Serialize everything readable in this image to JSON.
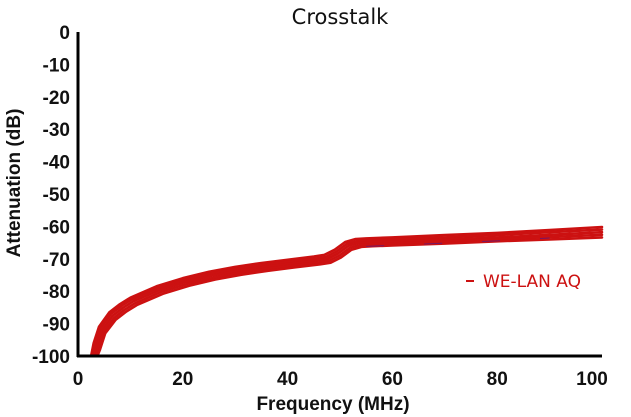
{
  "chart_data": {
    "type": "line",
    "title": "Crosstalk",
    "xlabel": "Frequency (MHz)",
    "ylabel": "Attenuation (dB)",
    "xlim": [
      0,
      100
    ],
    "ylim": [
      -100,
      0
    ],
    "xticks": [
      "0",
      "20",
      "40",
      "60",
      "80",
      "100"
    ],
    "yticks": [
      "0",
      "-10",
      "-20",
      "-30",
      "-40",
      "-50",
      "-60",
      "-70",
      "-80",
      "-90",
      "-100"
    ],
    "grid": false,
    "legend": {
      "label": "WE-LAN AQ",
      "placement": "right"
    },
    "colors": {
      "line": "#cc1111",
      "highlight": "#ffffff",
      "accent": "#3a1aa0"
    },
    "series": [
      {
        "name": "WE-LAN AQ",
        "x": [
          2.5,
          3,
          4,
          6,
          8,
          10,
          15,
          20,
          25,
          30,
          35,
          40,
          45,
          47,
          49,
          51,
          53,
          55,
          60,
          70,
          80,
          90,
          100
        ],
        "y": [
          -100,
          -96,
          -91,
          -86.5,
          -84,
          -82,
          -78.5,
          -76,
          -74,
          -72.5,
          -71.3,
          -70.3,
          -69.3,
          -68.8,
          -67.2,
          -64.8,
          -63.9,
          -63.7,
          -63.4,
          -62.7,
          -62,
          -61.1,
          -60.2
        ]
      },
      {
        "x": [
          2.8,
          3.3,
          4.3,
          6.3,
          8.3,
          10.3,
          15.3,
          20.3,
          25.3,
          30.3,
          35.3,
          40.3,
          45.3,
          47.3,
          49.3,
          51.3,
          53.3,
          55.3,
          60,
          70,
          80,
          90,
          100
        ],
        "y": [
          -100,
          -96.5,
          -91.5,
          -87,
          -84.5,
          -82.5,
          -79,
          -76.5,
          -74.6,
          -73.1,
          -71.9,
          -70.9,
          -69.9,
          -69.4,
          -67.8,
          -65.4,
          -64.5,
          -64.3,
          -64,
          -63.4,
          -62.7,
          -61.8,
          -61
        ]
      },
      {
        "x": [
          3.1,
          3.6,
          4.6,
          6.6,
          8.6,
          10.6,
          15.6,
          20.6,
          25.6,
          30.6,
          35.6,
          40.6,
          45.6,
          47.6,
          49.6,
          51.6,
          53.6,
          55.6,
          60,
          70,
          80,
          90,
          100
        ],
        "y": [
          -100,
          -97,
          -92,
          -87.6,
          -85.1,
          -83.1,
          -79.6,
          -77.1,
          -75.2,
          -73.7,
          -72.5,
          -71.5,
          -70.5,
          -70,
          -68.4,
          -66,
          -65.1,
          -64.9,
          -64.7,
          -64.1,
          -63.4,
          -62.6,
          -61.8
        ]
      },
      {
        "x": [
          3.4,
          3.9,
          4.9,
          6.9,
          8.9,
          10.9,
          15.9,
          20.9,
          25.9,
          30.9,
          35.9,
          40.9,
          45.9,
          47.9,
          49.9,
          51.9,
          53.9,
          55.9,
          60,
          70,
          80,
          90,
          100
        ],
        "y": [
          -100,
          -97.5,
          -92.5,
          -88.2,
          -85.7,
          -83.7,
          -80.2,
          -77.7,
          -75.8,
          -74.3,
          -73.1,
          -72.1,
          -71.1,
          -70.6,
          -69,
          -66.6,
          -65.7,
          -65.5,
          -65.3,
          -64.7,
          -64,
          -63.3,
          -62.6
        ]
      },
      {
        "x": [
          3.7,
          4.2,
          5.2,
          7.2,
          9.2,
          11.2,
          16.2,
          21.2,
          26.2,
          31.2,
          36.2,
          41.2,
          46.2,
          48.2,
          50.2,
          52.2,
          54.2,
          56.2,
          60,
          70,
          80,
          90,
          100
        ],
        "y": [
          -100,
          -98,
          -93,
          -88.8,
          -86.3,
          -84.3,
          -80.8,
          -78.3,
          -76.4,
          -74.9,
          -73.7,
          -72.7,
          -71.7,
          -71.2,
          -69.6,
          -67.2,
          -66.3,
          -66.1,
          -65.9,
          -65.3,
          -64.6,
          -64,
          -63.4
        ]
      }
    ]
  }
}
